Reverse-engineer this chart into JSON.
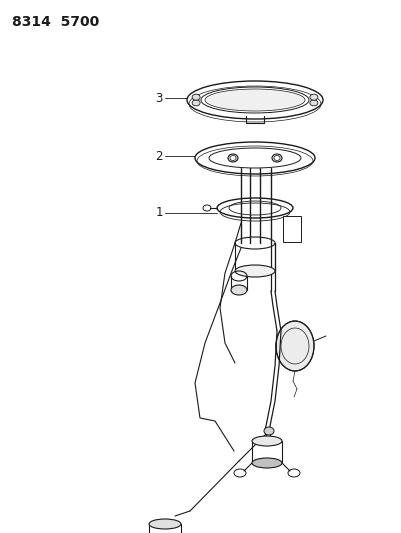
{
  "title": "8314  5700",
  "title_fontsize": 10,
  "title_fontweight": "bold",
  "bg_color": "#ffffff",
  "line_color": "#1a1a1a",
  "label_1": "1",
  "label_2": "2",
  "label_3": "3",
  "label_fontsize": 8.5,
  "figsize": [
    4.01,
    5.33
  ],
  "dpi": 100
}
